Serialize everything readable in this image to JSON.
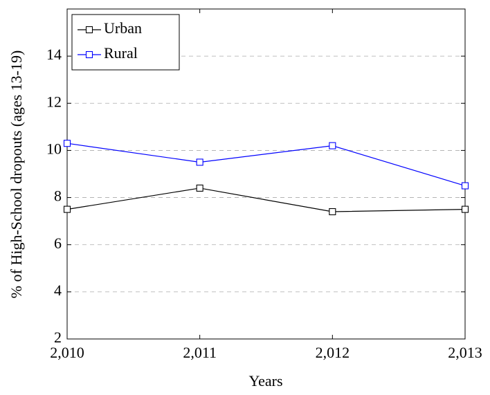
{
  "chart_data": {
    "type": "line",
    "x_label": "Years",
    "y_label": "% of High-School dropouts (ages 13-19)",
    "x": [
      2010,
      2011,
      2012,
      2013
    ],
    "series": [
      {
        "name": "Urban",
        "color": "#000000",
        "values": [
          7.5,
          8.4,
          7.4,
          7.5
        ]
      },
      {
        "name": "Rural",
        "color": "#0000ff",
        "values": [
          10.3,
          9.5,
          10.2,
          8.5
        ]
      }
    ],
    "xlim": [
      2010,
      2013
    ],
    "xticks": [
      {
        "value": 2010,
        "label": "2,010"
      },
      {
        "value": 2011,
        "label": "2,011"
      },
      {
        "value": 2012,
        "label": "2,012"
      },
      {
        "value": 2013,
        "label": "2,013"
      }
    ],
    "ylim": [
      2,
      16
    ],
    "yticks": [
      2,
      4,
      6,
      8,
      10,
      12,
      14
    ],
    "grid": true,
    "legend": "top-left"
  }
}
